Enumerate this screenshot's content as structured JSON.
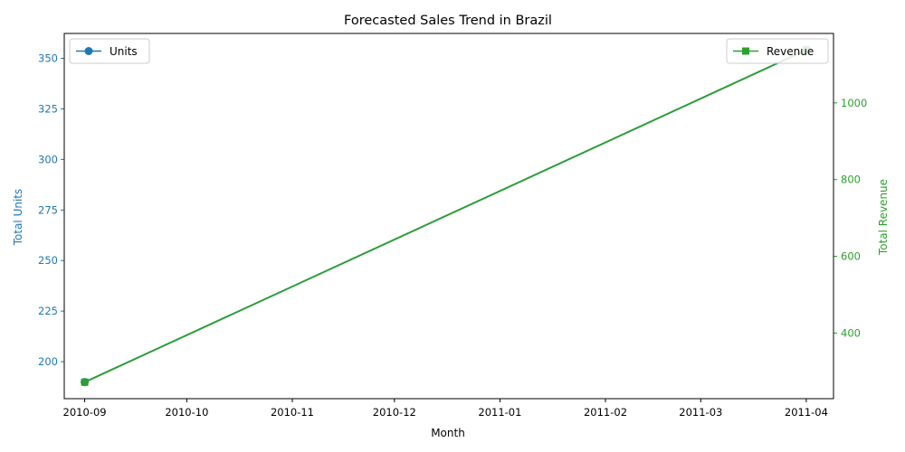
{
  "chart_data": {
    "type": "line",
    "title": "Forecasted Sales Trend in Brazil",
    "xlabel": "Month",
    "x_ticks": [
      "2010-09",
      "2010-10",
      "2010-11",
      "2010-12",
      "2011-01",
      "2011-02",
      "2011-03",
      "2011-04"
    ],
    "x": [
      "2010-09",
      "2011-04"
    ],
    "xlim": [
      "2010-08-26",
      "2011-04-09"
    ],
    "y_left": {
      "label": "Total Units",
      "color": "#1f77b4",
      "ylim": [
        181.7,
        362.3
      ],
      "ticks": [
        200,
        225,
        250,
        275,
        300,
        325,
        350
      ]
    },
    "y_right": {
      "label": "Total Revenue",
      "color": "#2ca02c",
      "ylim": [
        229,
        1181
      ],
      "ticks": [
        400,
        600,
        800,
        1000
      ]
    },
    "series": [
      {
        "name": "Units",
        "axis": "left",
        "color": "#1f77b4",
        "marker": "circle",
        "values": [
          189.9,
          354.1
        ]
      },
      {
        "name": "Revenue",
        "axis": "right",
        "color": "#2ca02c",
        "marker": "square",
        "values": [
          272,
          1138
        ]
      }
    ],
    "legends": {
      "units": "top-left",
      "revenue": "top-right"
    },
    "grid": false
  }
}
